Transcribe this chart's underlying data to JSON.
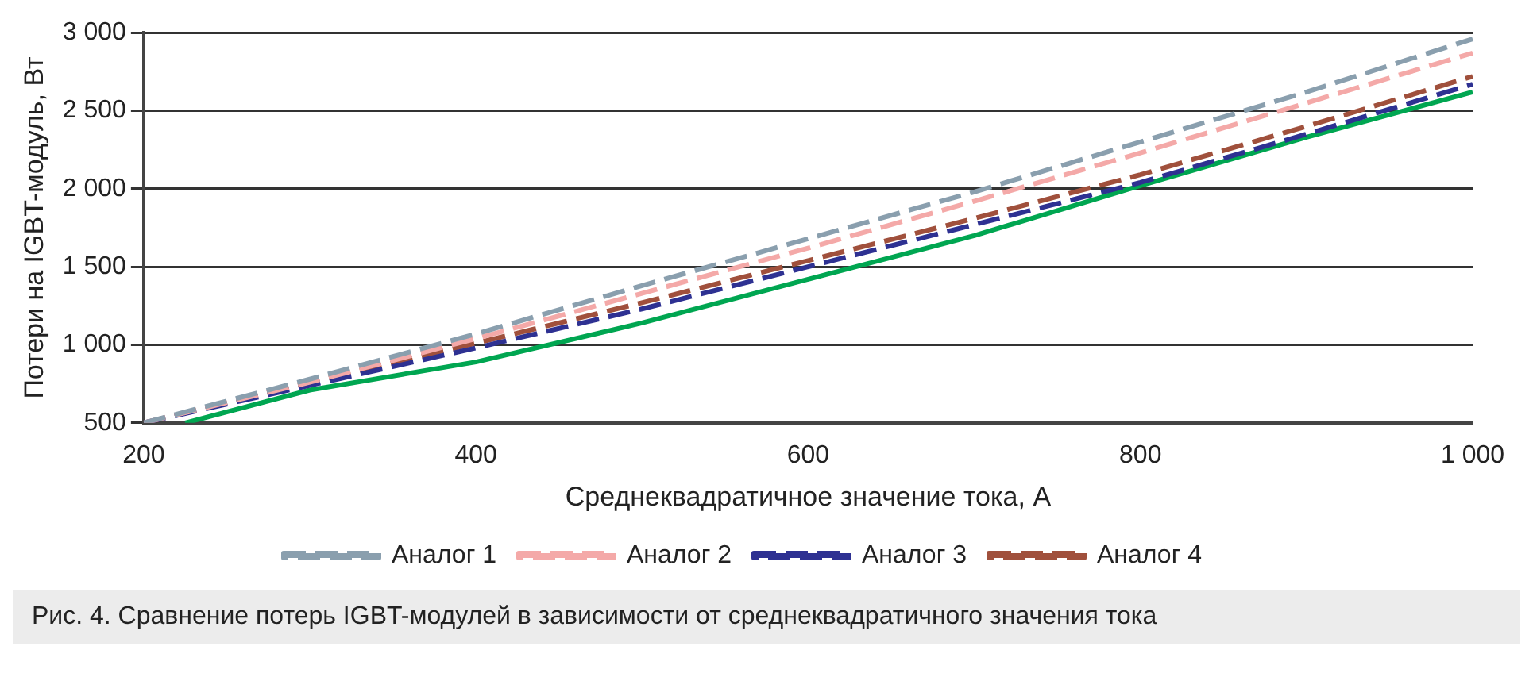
{
  "chart_data": {
    "type": "line",
    "xlabel": "Среднеквадратичное значение тока, А",
    "ylabel": "Потери на IGBT-модуль, Вт",
    "x": [
      200,
      300,
      400,
      500,
      600,
      700,
      800,
      900,
      1000
    ],
    "series": [
      {
        "name": "Аналог 1",
        "color": "#8a9fae",
        "line_style": "dashed",
        "values": [
          500,
          780,
          1070,
          1380,
          1680,
          1980,
          2300,
          2620,
          2960
        ]
      },
      {
        "name": "Аналог 2",
        "color": "#f4a9a8",
        "line_style": "dashed",
        "values": [
          500,
          760,
          1040,
          1330,
          1620,
          1920,
          2230,
          2550,
          2870
        ]
      },
      {
        "name": "Аналог 3",
        "color": "#2e3192",
        "line_style": "dashed",
        "values": [
          500,
          740,
          980,
          1230,
          1500,
          1770,
          2040,
          2350,
          2670
        ]
      },
      {
        "name": "Аналог 4",
        "color": "#a0503c",
        "line_style": "dashed",
        "values": [
          500,
          760,
          1010,
          1270,
          1540,
          1810,
          2090,
          2400,
          2720
        ]
      },
      {
        "color": "#00a651",
        "line_style": "solid",
        "x": [
          225,
          300,
          400,
          500,
          600,
          700,
          800,
          900,
          1000
        ],
        "values": [
          500,
          710,
          890,
          1140,
          1420,
          1700,
          2020,
          2330,
          2620
        ]
      }
    ],
    "xlim": [
      200,
      1000
    ],
    "xticks": [
      200,
      400,
      600,
      800,
      {
        "value": 1000,
        "label": "1 000"
      }
    ],
    "ylim": [
      500,
      3000
    ],
    "yticks": [
      500,
      {
        "value": 1000,
        "label": "1 000"
      },
      {
        "value": 1500,
        "label": "1 500"
      },
      {
        "value": 2000,
        "label": "2 000"
      },
      {
        "value": 2500,
        "label": "2 500"
      },
      {
        "value": 3000,
        "label": "3 000"
      }
    ],
    "grid": "y",
    "legend": "bottom",
    "marker": "none",
    "annotations": [
      "Рис. 4. Сравнение потерь IGBT-модулей в зависимости от среднеквадратичного значения тока"
    ]
  }
}
